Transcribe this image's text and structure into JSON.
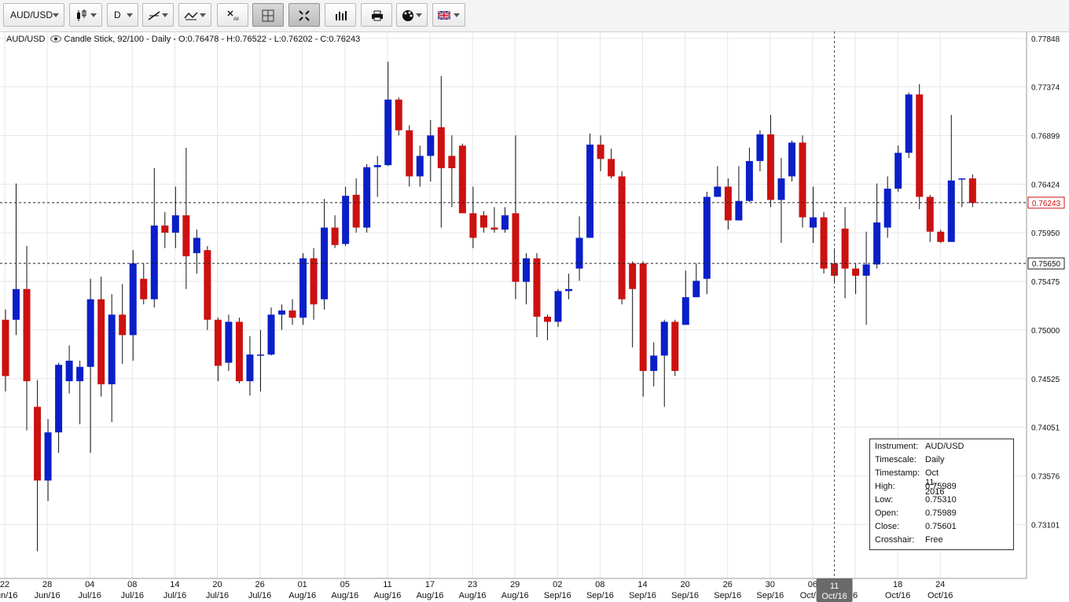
{
  "toolbar": {
    "symbol": "AUD/USD",
    "timeframe": "D",
    "buttons": [
      "chart-type",
      "timeframe",
      "draw-line",
      "draw-tools",
      "delete-all",
      "crosshair",
      "fullscreen",
      "indicators",
      "print",
      "theme",
      "language"
    ]
  },
  "legend": {
    "symbol": "AUD/USD",
    "text": "Candle Stick, 92/100 - Daily - O:0.76478 - H:0.76522 - L:0.76202 - C:0.76243"
  },
  "price_labels": {
    "current": "0.76243",
    "crosshair": "0.75650"
  },
  "crosshair_date": [
    "11",
    "Oct/16"
  ],
  "info_box": [
    {
      "k": "Instrument:",
      "v": "AUD/USD"
    },
    {
      "k": "Timescale:",
      "v": "Daily"
    },
    {
      "k": "Timestamp:",
      "v": "Oct 11, 2016"
    },
    {
      "k": "High:",
      "v": "0.75989"
    },
    {
      "k": "Low:",
      "v": "0.75310"
    },
    {
      "k": "Open:",
      "v": "0.75989"
    },
    {
      "k": "Close:",
      "v": "0.75601"
    },
    {
      "k": "Crosshair:",
      "v": "Free"
    }
  ],
  "colors": {
    "up": "#0a1fc8",
    "down": "#cc1111",
    "grid": "#e6e6e6"
  },
  "chart_data": {
    "type": "candlestick",
    "y_ticks": [
      0.77848,
      0.77374,
      0.76899,
      0.76424,
      0.7595,
      0.75475,
      0.75,
      0.74525,
      0.74051,
      0.73576,
      0.73101
    ],
    "y_tick_labels": [
      "0.77848",
      "0.77374",
      "0.76899",
      "0.76424",
      "0.75950",
      "0.75475",
      "0.75000",
      "0.74525",
      "0.74051",
      "0.73576",
      "0.73101"
    ],
    "ylim": [
      0.7262,
      0.779
    ],
    "x_labels": [
      [
        "22",
        "Jun/16"
      ],
      [
        "28",
        "Jun/16"
      ],
      [
        "04",
        "Jul/16"
      ],
      [
        "08",
        "Jul/16"
      ],
      [
        "14",
        "Jul/16"
      ],
      [
        "20",
        "Jul/16"
      ],
      [
        "26",
        "Jul/16"
      ],
      [
        "01",
        "Aug/16"
      ],
      [
        "05",
        "Aug/16"
      ],
      [
        "11",
        "Aug/16"
      ],
      [
        "17",
        "Aug/16"
      ],
      [
        "23",
        "Aug/16"
      ],
      [
        "29",
        "Aug/16"
      ],
      [
        "02",
        "Sep/16"
      ],
      [
        "08",
        "Sep/16"
      ],
      [
        "14",
        "Sep/16"
      ],
      [
        "20",
        "Sep/16"
      ],
      [
        "26",
        "Sep/16"
      ],
      [
        "30",
        "Sep/16"
      ],
      [
        "06",
        "Oct/16"
      ],
      [
        "",
        "6"
      ],
      [
        "18",
        "Oct/16"
      ],
      [
        "24",
        "Oct/16"
      ]
    ],
    "candles": [
      [
        0.751,
        0.7455,
        0.752,
        0.744
      ],
      [
        0.751,
        0.754,
        0.7643,
        0.7495
      ],
      [
        0.754,
        0.745,
        0.7582,
        0.7402
      ],
      [
        0.7425,
        0.7353,
        0.7451,
        0.7284
      ],
      [
        0.7353,
        0.74,
        0.7413,
        0.7333
      ],
      [
        0.74,
        0.7466,
        0.7468,
        0.738
      ],
      [
        0.745,
        0.747,
        0.7485,
        0.7438
      ],
      [
        0.745,
        0.7464,
        0.747,
        0.7408
      ],
      [
        0.7464,
        0.753,
        0.755,
        0.738
      ],
      [
        0.753,
        0.7447,
        0.7552,
        0.7435
      ],
      [
        0.7447,
        0.7515,
        0.7535,
        0.741
      ],
      [
        0.7515,
        0.7495,
        0.7545,
        0.7467
      ],
      [
        0.7495,
        0.7565,
        0.7578,
        0.747
      ],
      [
        0.755,
        0.753,
        0.7565,
        0.7525
      ],
      [
        0.753,
        0.7602,
        0.7658,
        0.7522
      ],
      [
        0.7602,
        0.7595,
        0.7615,
        0.758
      ],
      [
        0.7595,
        0.7612,
        0.764,
        0.758
      ],
      [
        0.7612,
        0.7572,
        0.7678,
        0.754
      ],
      [
        0.7575,
        0.759,
        0.7598,
        0.7555
      ],
      [
        0.7578,
        0.751,
        0.7582,
        0.75
      ],
      [
        0.751,
        0.7465,
        0.7512,
        0.745
      ],
      [
        0.7468,
        0.7508,
        0.7515,
        0.746
      ],
      [
        0.7508,
        0.745,
        0.7512,
        0.7448
      ],
      [
        0.745,
        0.7476,
        0.7494,
        0.7436
      ],
      [
        0.7476,
        0.7476,
        0.75,
        0.744
      ],
      [
        0.7476,
        0.7515,
        0.7522,
        0.7475
      ],
      [
        0.7515,
        0.7519,
        0.7525,
        0.75
      ],
      [
        0.7519,
        0.7512,
        0.753,
        0.7505
      ],
      [
        0.7512,
        0.757,
        0.7575,
        0.7505
      ],
      [
        0.757,
        0.7525,
        0.758,
        0.751
      ],
      [
        0.753,
        0.76,
        0.7628,
        0.752
      ],
      [
        0.76,
        0.7583,
        0.7612,
        0.758
      ],
      [
        0.7584,
        0.7631,
        0.764,
        0.7582
      ],
      [
        0.7632,
        0.76,
        0.7648,
        0.7595
      ],
      [
        0.76,
        0.7659,
        0.7662,
        0.7595
      ],
      [
        0.7659,
        0.7661,
        0.767,
        0.763
      ],
      [
        0.7661,
        0.7725,
        0.7762,
        0.766
      ],
      [
        0.7725,
        0.7695,
        0.7727,
        0.769
      ],
      [
        0.7695,
        0.765,
        0.77,
        0.764
      ],
      [
        0.765,
        0.767,
        0.768,
        0.764
      ],
      [
        0.767,
        0.769,
        0.7705,
        0.7645
      ],
      [
        0.7698,
        0.7658,
        0.7748,
        0.76
      ],
      [
        0.767,
        0.7658,
        0.769,
        0.762
      ],
      [
        0.768,
        0.7614,
        0.7682,
        0.7615
      ],
      [
        0.7614,
        0.759,
        0.764,
        0.758
      ],
      [
        0.7612,
        0.76,
        0.7616,
        0.7595
      ],
      [
        0.76,
        0.7598,
        0.762,
        0.7595
      ],
      [
        0.7598,
        0.7612,
        0.762,
        0.7595
      ],
      [
        0.7614,
        0.7547,
        0.769,
        0.753
      ],
      [
        0.7547,
        0.757,
        0.7575,
        0.7525
      ],
      [
        0.757,
        0.7513,
        0.7575,
        0.7493
      ],
      [
        0.7513,
        0.7508,
        0.7515,
        0.749
      ],
      [
        0.7508,
        0.7538,
        0.754,
        0.7503
      ],
      [
        0.7538,
        0.754,
        0.7555,
        0.753
      ],
      [
        0.756,
        0.759,
        0.7611,
        0.7548
      ],
      [
        0.759,
        0.7681,
        0.7692,
        0.759
      ],
      [
        0.7681,
        0.7667,
        0.769,
        0.7655
      ],
      [
        0.7667,
        0.765,
        0.7677,
        0.7648
      ],
      [
        0.765,
        0.753,
        0.7655,
        0.7525
      ],
      [
        0.7565,
        0.754,
        0.7567,
        0.7483
      ],
      [
        0.7565,
        0.746,
        0.7567,
        0.7435
      ],
      [
        0.746,
        0.7475,
        0.7488,
        0.7445
      ],
      [
        0.7475,
        0.7508,
        0.751,
        0.7425
      ],
      [
        0.7508,
        0.746,
        0.751,
        0.7455
      ],
      [
        0.7505,
        0.7532,
        0.7558,
        0.7505
      ],
      [
        0.7532,
        0.7548,
        0.7565,
        0.7532
      ],
      [
        0.755,
        0.763,
        0.7635,
        0.7535
      ],
      [
        0.763,
        0.764,
        0.766,
        0.763
      ],
      [
        0.764,
        0.7607,
        0.7648,
        0.7598
      ],
      [
        0.7607,
        0.7626,
        0.766,
        0.761
      ],
      [
        0.7626,
        0.7665,
        0.7678,
        0.7625
      ],
      [
        0.7665,
        0.7691,
        0.7695,
        0.7655
      ],
      [
        0.7691,
        0.7627,
        0.771,
        0.762
      ],
      [
        0.7627,
        0.7648,
        0.7668,
        0.7585
      ],
      [
        0.765,
        0.7683,
        0.7685,
        0.7645
      ],
      [
        0.7683,
        0.761,
        0.769,
        0.76
      ],
      [
        0.76,
        0.761,
        0.764,
        0.7585
      ],
      [
        0.761,
        0.756,
        0.7615,
        0.7555
      ],
      [
        0.7565,
        0.7553,
        0.758,
        0.7545
      ],
      [
        0.7599,
        0.756,
        0.762,
        0.7531
      ],
      [
        0.756,
        0.7553,
        0.7565,
        0.7535
      ],
      [
        0.7553,
        0.7564,
        0.7596,
        0.7505
      ],
      [
        0.7564,
        0.7605,
        0.7643,
        0.756
      ],
      [
        0.76,
        0.7638,
        0.765,
        0.759
      ],
      [
        0.7638,
        0.7673,
        0.768,
        0.7635
      ],
      [
        0.7673,
        0.773,
        0.7732,
        0.7668
      ],
      [
        0.773,
        0.763,
        0.774,
        0.7618
      ],
      [
        0.763,
        0.7596,
        0.7632,
        0.7586
      ],
      [
        0.7596,
        0.7586,
        0.7598,
        0.7585
      ],
      [
        0.7586,
        0.7646,
        0.771,
        0.7615
      ],
      [
        0.7647,
        0.7648,
        0.7648,
        0.762
      ],
      [
        0.7648,
        0.7624,
        0.7652,
        0.762
      ]
    ]
  }
}
